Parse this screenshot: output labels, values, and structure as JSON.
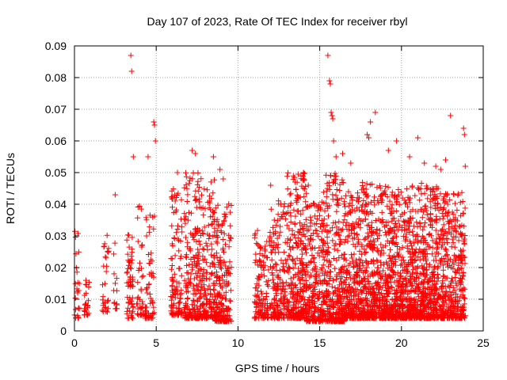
{
  "chart_data": {
    "type": "scatter",
    "title": "Day 107 of 2023, Rate Of TEC Index for receiver rbyl",
    "xlabel": "GPS time / hours",
    "ylabel": "ROTI / TECUs",
    "xlim": [
      0,
      25
    ],
    "ylim": [
      0,
      0.09
    ],
    "x_ticks": [
      0,
      5,
      10,
      15,
      20,
      25
    ],
    "x_tick_labels": [
      "0",
      "5",
      "10",
      "15",
      "20",
      "25"
    ],
    "y_ticks": [
      0,
      0.01,
      0.02,
      0.03,
      0.04,
      0.05,
      0.06,
      0.07,
      0.08,
      0.09
    ],
    "y_tick_labels": [
      "0",
      "0.01",
      "0.02",
      "0.03",
      "0.04",
      "0.05",
      "0.06",
      "0.07",
      "0.08",
      "0.09"
    ],
    "grid": true,
    "marker": "+",
    "color": "#ff0000",
    "clusters": [
      {
        "x": [
          0.0,
          0.3
        ],
        "ymin": 0.004,
        "ymax": 0.033,
        "count": 25
      },
      {
        "x": [
          0.6,
          0.9
        ],
        "ymin": 0.005,
        "ymax": 0.018,
        "count": 25
      },
      {
        "x": [
          1.7,
          2.1
        ],
        "ymin": 0.006,
        "ymax": 0.031,
        "count": 30
      },
      {
        "x": [
          2.4,
          2.6
        ],
        "ymin": 0.007,
        "ymax": 0.045,
        "count": 15
      },
      {
        "x": [
          3.2,
          3.6
        ],
        "ymin": 0.004,
        "ymax": 0.031,
        "count": 60
      },
      {
        "x": [
          3.8,
          4.2
        ],
        "ymin": 0.005,
        "ymax": 0.04,
        "count": 40
      },
      {
        "x": [
          4.3,
          4.9
        ],
        "ymin": 0.004,
        "ymax": 0.037,
        "count": 60
      },
      {
        "x": [
          5.9,
          6.6
        ],
        "ymin": 0.005,
        "ymax": 0.045,
        "count": 110
      },
      {
        "x": [
          6.7,
          7.6
        ],
        "ymin": 0.004,
        "ymax": 0.052,
        "count": 180
      },
      {
        "x": [
          7.6,
          8.6
        ],
        "ymin": 0.004,
        "ymax": 0.049,
        "count": 200
      },
      {
        "x": [
          8.6,
          9.6
        ],
        "ymin": 0.003,
        "ymax": 0.041,
        "count": 200
      },
      {
        "x": [
          11.0,
          12.0
        ],
        "ymin": 0.004,
        "ymax": 0.032,
        "count": 130
      },
      {
        "x": [
          12.0,
          13.0
        ],
        "ymin": 0.004,
        "ymax": 0.042,
        "count": 160
      },
      {
        "x": [
          13.0,
          14.2
        ],
        "ymin": 0.004,
        "ymax": 0.05,
        "count": 300
      },
      {
        "x": [
          14.2,
          15.2
        ],
        "ymin": 0.003,
        "ymax": 0.041,
        "count": 220
      },
      {
        "x": [
          15.2,
          16.5
        ],
        "ymin": 0.003,
        "ymax": 0.05,
        "count": 320
      },
      {
        "x": [
          16.5,
          17.5
        ],
        "ymin": 0.004,
        "ymax": 0.044,
        "count": 260
      },
      {
        "x": [
          17.5,
          18.5
        ],
        "ymin": 0.004,
        "ymax": 0.047,
        "count": 300
      },
      {
        "x": [
          18.5,
          19.5
        ],
        "ymin": 0.004,
        "ymax": 0.046,
        "count": 280
      },
      {
        "x": [
          19.5,
          20.5
        ],
        "ymin": 0.004,
        "ymax": 0.045,
        "count": 280
      },
      {
        "x": [
          20.5,
          21.5
        ],
        "ymin": 0.004,
        "ymax": 0.047,
        "count": 280
      },
      {
        "x": [
          21.5,
          22.5
        ],
        "ymin": 0.004,
        "ymax": 0.046,
        "count": 280
      },
      {
        "x": [
          22.5,
          23.9
        ],
        "ymin": 0.004,
        "ymax": 0.044,
        "count": 320
      }
    ],
    "outliers": {
      "x": [
        3.45,
        3.5,
        3.6,
        4.5,
        4.85,
        4.9,
        4.95,
        6.3,
        7.2,
        7.4,
        8.5,
        8.9,
        9.1,
        12.0,
        13.5,
        14.0,
        14.3,
        15.5,
        15.6,
        15.65,
        15.7,
        15.75,
        15.8,
        15.85,
        16.0,
        16.4,
        16.9,
        17.9,
        18.0,
        18.1,
        18.4,
        19.2,
        19.7,
        20.5,
        21.0,
        21.4,
        22.1,
        22.4,
        22.7,
        23.0,
        23.8,
        23.85,
        23.9
      ],
      "y": [
        0.087,
        0.082,
        0.055,
        0.055,
        0.066,
        0.065,
        0.06,
        0.05,
        0.057,
        0.056,
        0.055,
        0.051,
        0.048,
        0.046,
        0.047,
        0.05,
        0.046,
        0.087,
        0.079,
        0.078,
        0.069,
        0.068,
        0.067,
        0.06,
        0.055,
        0.056,
        0.053,
        0.062,
        0.061,
        0.066,
        0.069,
        0.057,
        0.06,
        0.055,
        0.061,
        0.053,
        0.052,
        0.051,
        0.054,
        0.068,
        0.064,
        0.062,
        0.052
      ]
    }
  }
}
